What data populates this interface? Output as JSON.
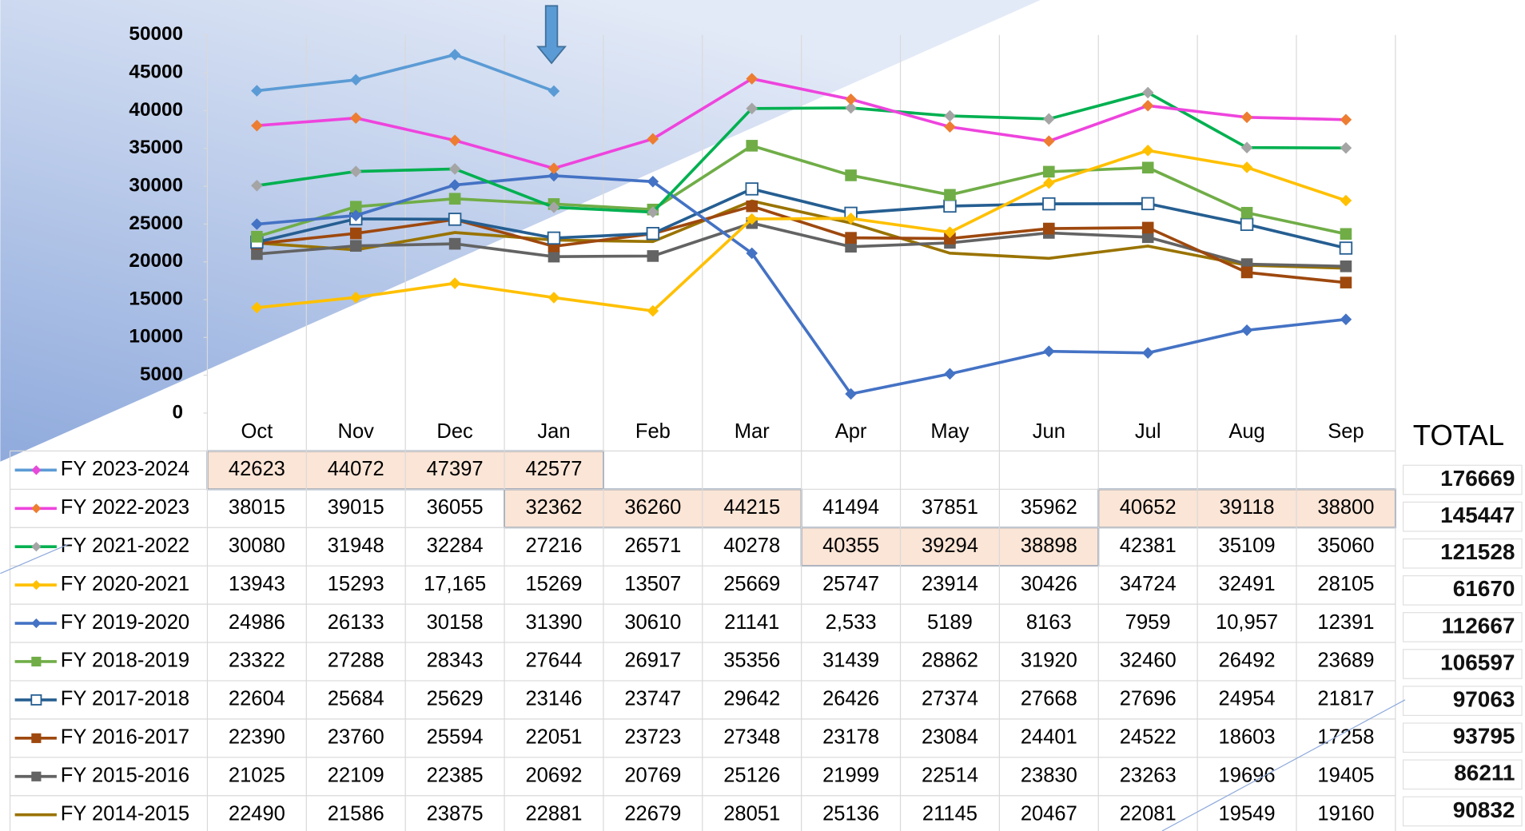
{
  "chart_data": {
    "type": "line",
    "categories": [
      "Oct",
      "Nov",
      "Dec",
      "Jan",
      "Feb",
      "Mar",
      "Apr",
      "May",
      "Jun",
      "Jul",
      "Aug",
      "Sep"
    ],
    "ylim": [
      0,
      50000
    ],
    "yticks": [
      0,
      5000,
      10000,
      15000,
      20000,
      25000,
      30000,
      35000,
      40000,
      45000,
      50000
    ],
    "grid": true,
    "total_label": "TOTAL",
    "totals": [
      176669,
      145447,
      121528,
      61670,
      112667,
      106597,
      97063,
      93795,
      86211,
      90832
    ],
    "series": [
      {
        "name": "FY 2023-2024",
        "color": "#5b9bd5",
        "marker": "diamond",
        "marker_color": "#e64ad8",
        "chart_marker_color": "#5b9bd5",
        "values": [
          42623,
          44072,
          47397,
          42577,
          null,
          null,
          null,
          null,
          null,
          null,
          null,
          null
        ]
      },
      {
        "name": "FY 2022-2023",
        "color": "#ee44dd",
        "marker": "diamond",
        "marker_color": "#ed7d31",
        "values": [
          38015,
          39015,
          36055,
          32362,
          36260,
          44215,
          41494,
          37851,
          35962,
          40652,
          39118,
          38800
        ]
      },
      {
        "name": "FY 2021-2022",
        "color": "#00b050",
        "marker": "diamond",
        "marker_color": "#a5a5a5",
        "values": [
          30080,
          31948,
          32284,
          27216,
          26571,
          40278,
          40355,
          39294,
          38898,
          42381,
          35109,
          35060
        ]
      },
      {
        "name": "FY 2020-2021",
        "color": "#ffc000",
        "marker": "diamond",
        "marker_color": "#ffc000",
        "values": [
          13943,
          15293,
          17165,
          15269,
          13507,
          25669,
          25747,
          23914,
          30426,
          34724,
          32491,
          28105
        ],
        "value_labels": [
          "13943",
          "15293",
          "17,165",
          "15269",
          "13507",
          "25669",
          "25747",
          "23914",
          "30426",
          "34724",
          "32491",
          "28105"
        ]
      },
      {
        "name": "FY 2019-2020",
        "color": "#4472c4",
        "marker": "diamond",
        "marker_color": "#4472c4",
        "values": [
          24986,
          26133,
          30158,
          31390,
          30610,
          21141,
          2533,
          5189,
          8163,
          7959,
          10957,
          12391
        ],
        "value_labels": [
          "24986",
          "26133",
          "30158",
          "31390",
          "30610",
          "21141",
          "2,533",
          "5189",
          "8163",
          "7959",
          "10,957",
          "12391"
        ]
      },
      {
        "name": "FY 2018-2019",
        "color": "#70ad47",
        "marker": "square",
        "marker_color": "#70ad47",
        "values": [
          23322,
          27288,
          28343,
          27644,
          26917,
          35356,
          31439,
          28862,
          31920,
          32460,
          26492,
          23689
        ]
      },
      {
        "name": "FY 2017-2018",
        "color": "#255e91",
        "marker": "hollow-square",
        "marker_color": "#255e91",
        "values": [
          22604,
          25684,
          25629,
          23146,
          23747,
          29642,
          26426,
          27374,
          27668,
          27696,
          24954,
          21817
        ]
      },
      {
        "name": "FY 2016-2017",
        "color": "#9e480e",
        "marker": "square",
        "marker_color": "#9e480e",
        "values": [
          22390,
          23760,
          25594,
          22051,
          23723,
          27348,
          23178,
          23084,
          24401,
          24522,
          18603,
          17258
        ]
      },
      {
        "name": "FY 2015-2016",
        "color": "#636363",
        "marker": "square",
        "marker_color": "#636363",
        "values": [
          21025,
          22109,
          22385,
          20692,
          20769,
          25126,
          21999,
          22514,
          23830,
          23263,
          19696,
          19405
        ]
      },
      {
        "name": "FY 2014-2015",
        "color": "#997300",
        "marker": "none",
        "marker_color": "#997300",
        "values": [
          22490,
          21586,
          23875,
          22881,
          22679,
          28051,
          25136,
          21145,
          20467,
          22081,
          19549,
          19160
        ]
      }
    ]
  }
}
